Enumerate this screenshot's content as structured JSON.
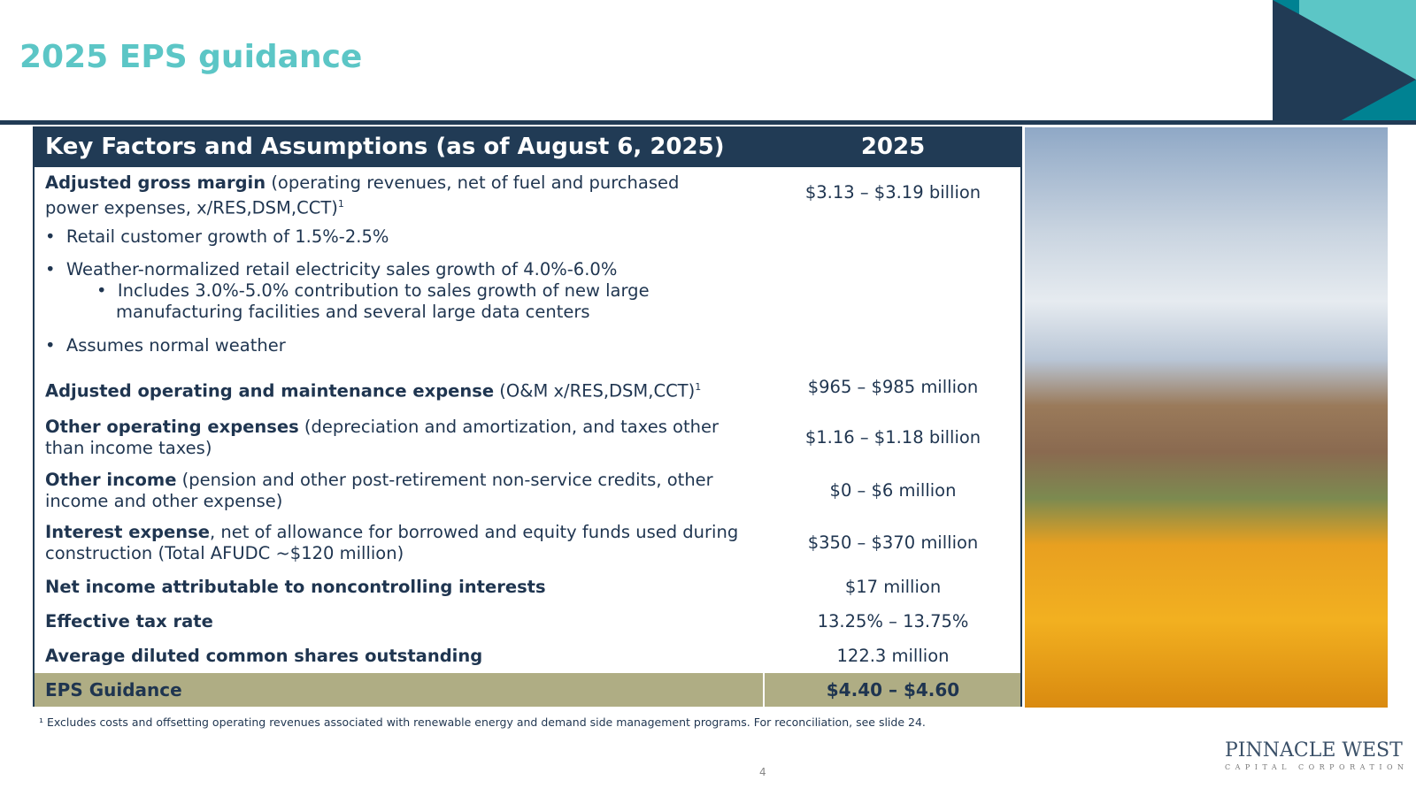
{
  "title": "2025 EPS guidance",
  "table": {
    "header_left": "Key Factors and Assumptions (as of August 6, 2025)",
    "header_right": "2025",
    "rows": [
      {
        "bold": "Adjusted gross margin",
        "rest": " (operating revenues, net of fuel and purchased power expenses, x/RES,DSM,CCT)",
        "sup": "1",
        "value": "$3.13 – $3.19 billion"
      },
      {
        "bullet": "Retail customer growth of 1.5%-2.5%"
      },
      {
        "bullet": "Weather-normalized retail electricity sales growth of 4.0%-6.0%"
      },
      {
        "subbullet": "Includes 3.0%-5.0% contribution to sales growth of new large manufacturing facilities and several large data centers"
      },
      {
        "bullet": "Assumes normal weather"
      },
      {
        "bold": "Adjusted operating and maintenance expense",
        "rest": " (O&M x/RES,DSM,CCT)",
        "sup": "1",
        "value": "$965 – $985 million"
      },
      {
        "bold": "Other operating expenses",
        "rest": " (depreciation and amortization, and taxes other than income taxes)",
        "value": "$1.16 – $1.18 billion"
      },
      {
        "bold": "Other income",
        "rest": " (pension and other post-retirement non-service credits, other income and other expense)",
        "value": "$0 – $6 million"
      },
      {
        "bold": "Interest expense",
        "rest": ", net of allowance for borrowed and equity funds used during construction (Total AFUDC ~$120 million)",
        "value": "$350 – $370 million"
      },
      {
        "bold": "Net income attributable to noncontrolling interests",
        "value": "$17 million"
      },
      {
        "bold": "Effective tax rate",
        "value": "13.25% – 13.75%"
      },
      {
        "bold": "Average diluted common shares outstanding",
        "value": "122.3 million"
      }
    ],
    "eps_label": "EPS Guidance",
    "eps_value": "$4.40 – $4.60"
  },
  "footnote": "¹ Excludes costs and offsetting operating revenues associated with renewable energy and demand side management programs. For reconciliation, see slide 24.",
  "page_number": "4",
  "logo": {
    "line1": "PINNACLE WEST",
    "line2": "CAPITAL CORPORATION"
  },
  "colors": {
    "navy": "#213b55",
    "teal": "#5cc6c6",
    "dark_teal": "#008292",
    "eps_band": "#afad84"
  }
}
